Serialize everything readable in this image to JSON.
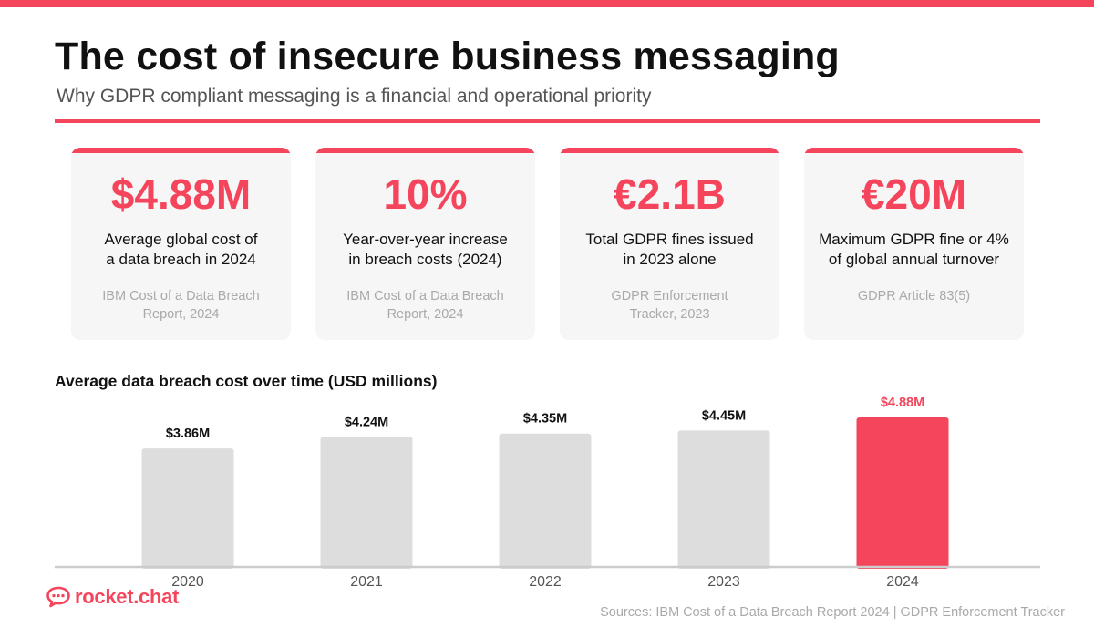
{
  "header": {
    "title": "The cost of insecure business messaging",
    "subtitle": "Why GDPR compliant messaging is a financial and operational priority"
  },
  "cards": [
    {
      "value": "$4.88M",
      "label_lines": [
        "Average global cost of",
        "a data breach in 2024"
      ],
      "source_lines": [
        "IBM Cost of a Data Breach",
        "Report, 2024"
      ]
    },
    {
      "value": "10%",
      "label_lines": [
        "Year-over-year increase",
        "in breach costs (2024)"
      ],
      "source_lines": [
        "IBM Cost of a Data Breach",
        "Report, 2024"
      ]
    },
    {
      "value": "€2.1B",
      "label_lines": [
        "Total GDPR fines issued",
        "in 2023 alone"
      ],
      "source_lines": [
        "GDPR Enforcement",
        "Tracker, 2023"
      ]
    },
    {
      "value": "€20M",
      "label_lines": [
        "Maximum GDPR fine or 4%",
        "of global annual turnover"
      ],
      "source_lines": [
        "GDPR Article 83(5)"
      ]
    }
  ],
  "chart_data": {
    "type": "bar",
    "title": "Average data breach cost over time (USD millions)",
    "categories": [
      "2020",
      "2021",
      "2022",
      "2023",
      "2024"
    ],
    "values": [
      3.86,
      4.24,
      4.35,
      4.45,
      4.88
    ],
    "data_labels": [
      "$3.86M",
      "$4.24M",
      "$4.35M",
      "$4.45M",
      "$4.88M"
    ],
    "highlight_category": "2024",
    "ylim": [
      0,
      5.3
    ],
    "grid": false,
    "colors": {
      "default_bar": "#dddddd",
      "highlight_bar": "#f5455c",
      "label": "#111111",
      "highlight_label": "#f5455c"
    }
  },
  "footer": {
    "logo_text": "rocket.chat",
    "sources": "Sources: IBM Cost of a Data Breach Report 2024 | GDPR Enforcement Tracker"
  },
  "theme": {
    "accent": "#f5455c",
    "muted": "#a9a9a9"
  }
}
